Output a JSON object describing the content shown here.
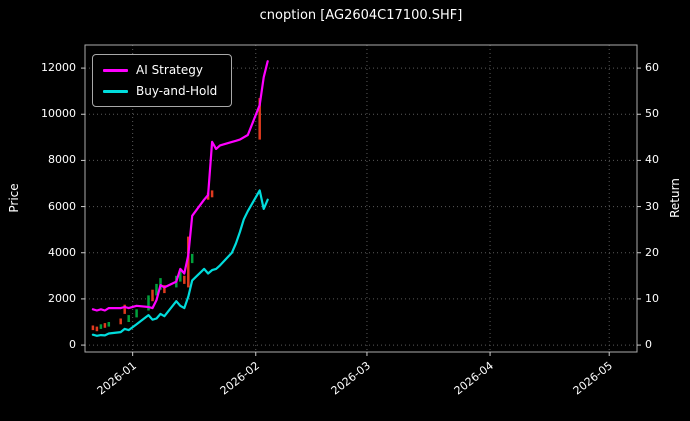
{
  "chart_data": {
    "type": "line",
    "title": "cnoption [AG2604C17100.SHF]",
    "ylabel_left": "Price",
    "ylabel_right": "Return",
    "background": "#000000",
    "grid": true,
    "legend_position": "upper-left",
    "xlim": [
      "2025-12-20",
      "2026-05-08"
    ],
    "x_tick_labels": [
      "2026-01",
      "2026-02",
      "2026-03",
      "2026-04",
      "2026-05"
    ],
    "x_tick_dates": [
      "2026-01-01",
      "2026-02-01",
      "2026-03-01",
      "2026-04-01",
      "2026-05-01"
    ],
    "price_ticks": [
      0,
      2000,
      4000,
      6000,
      8000,
      10000,
      12000
    ],
    "return_ticks": [
      0,
      10,
      20,
      30,
      40,
      50,
      60
    ],
    "price_ylim": [
      -300,
      13000
    ],
    "return_ylim": [
      -1.5,
      65
    ],
    "x": [
      "2025-12-22",
      "2025-12-23",
      "2025-12-24",
      "2025-12-25",
      "2025-12-26",
      "2025-12-29",
      "2025-12-30",
      "2025-12-31",
      "2026-01-02",
      "2026-01-05",
      "2026-01-06",
      "2026-01-07",
      "2026-01-08",
      "2026-01-09",
      "2026-01-12",
      "2026-01-13",
      "2026-01-14",
      "2026-01-15",
      "2026-01-16",
      "2026-01-19",
      "2026-01-20",
      "2026-01-21",
      "2026-01-22",
      "2026-01-23",
      "2026-01-26",
      "2026-01-27",
      "2026-01-28",
      "2026-01-29",
      "2026-01-30",
      "2026-02-02",
      "2026-02-03",
      "2026-02-04"
    ],
    "series": [
      {
        "name": "AI Strategy",
        "color": "#ff00ff",
        "axis": "price",
        "values": [
          1550,
          1500,
          1550,
          1500,
          1600,
          1600,
          1650,
          1600,
          1700,
          1650,
          1600,
          1950,
          2600,
          2500,
          2750,
          3300,
          3100,
          3900,
          5600,
          6300,
          6500,
          8800,
          8500,
          8650,
          8800,
          8850,
          8900,
          9000,
          9100,
          10400,
          11600,
          12300
        ]
      },
      {
        "name": "Buy-and-Hold",
        "color": "#00dcdc",
        "axis": "price",
        "values": [
          450,
          400,
          430,
          420,
          500,
          560,
          700,
          650,
          900,
          1300,
          1100,
          1150,
          1350,
          1250,
          1900,
          1700,
          1600,
          2100,
          2800,
          3300,
          3100,
          3250,
          3300,
          3450,
          4000,
          4400,
          4900,
          5450,
          5800,
          6700,
          5900,
          6300
        ]
      }
    ],
    "candles": [
      [
        "2025-12-22",
        650,
        850,
        "r"
      ],
      [
        "2025-12-23",
        600,
        800,
        "r"
      ],
      [
        "2025-12-24",
        700,
        900,
        "g"
      ],
      [
        "2025-12-25",
        750,
        950,
        "r"
      ],
      [
        "2025-12-26",
        800,
        1000,
        "g"
      ],
      [
        "2025-12-29",
        900,
        1150,
        "r"
      ],
      [
        "2025-12-30",
        1350,
        1750,
        "r"
      ],
      [
        "2025-12-31",
        1000,
        1300,
        "g"
      ],
      [
        "2026-01-02",
        1200,
        1550,
        "g"
      ],
      [
        "2026-01-05",
        1500,
        2150,
        "g"
      ],
      [
        "2026-01-06",
        1900,
        2400,
        "r"
      ],
      [
        "2026-01-07",
        2150,
        2650,
        "g"
      ],
      [
        "2026-01-08",
        2400,
        2900,
        "g"
      ],
      [
        "2026-01-09",
        2250,
        2600,
        "r"
      ],
      [
        "2026-01-12",
        2500,
        3000,
        "g"
      ],
      [
        "2026-01-13",
        2750,
        3250,
        "g"
      ],
      [
        "2026-01-14",
        2650,
        3000,
        "r"
      ],
      [
        "2026-01-15",
        2500,
        4700,
        "r"
      ],
      [
        "2026-01-16",
        3550,
        3950,
        "g"
      ],
      [
        "2026-01-20",
        6300,
        6600,
        "r"
      ],
      [
        "2026-01-21",
        6400,
        6700,
        "r"
      ],
      [
        "2026-02-02",
        8900,
        10700,
        "r"
      ]
    ],
    "candle_colors": {
      "r": "#e03a1e",
      "g": "#00a03c"
    },
    "axis_color": "#ababab",
    "tick_color": "#cccccc"
  }
}
